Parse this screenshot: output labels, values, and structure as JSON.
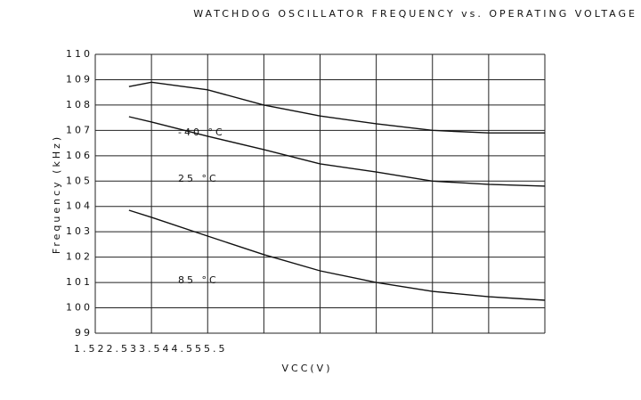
{
  "chart_data": {
    "type": "line",
    "title": "WATCHDOG OSCILLATOR FREQUENCY vs. OPERATING VOLTAGE",
    "xlabel": "VCC(V)",
    "ylabel": "Frequency (kHz)",
    "x": [
      1.8,
      2,
      2.5,
      3,
      3.5,
      4,
      4.5,
      5,
      5.5
    ],
    "series": [
      {
        "name": "-40 °C",
        "color": "#111111",
        "values": [
          108.73,
          108.9,
          108.6,
          108.0,
          107.57,
          107.26,
          107.0,
          106.9,
          106.9
        ]
      },
      {
        "name": "25 °C",
        "color": "#111111",
        "values": [
          107.54,
          107.33,
          106.77,
          106.24,
          105.68,
          105.36,
          105.0,
          104.87,
          104.8
        ]
      },
      {
        "name": "85 °C",
        "color": "#111111",
        "values": [
          103.85,
          103.57,
          102.83,
          102.1,
          101.46,
          101.0,
          100.65,
          100.44,
          100.3
        ]
      }
    ],
    "xlim": [
      1.5,
      5.5
    ],
    "xticks": [
      1.5,
      2,
      2.5,
      3,
      3.5,
      4,
      4.5,
      5,
      5.5
    ],
    "ylim": [
      99,
      110
    ],
    "yticks": [
      99,
      100,
      101,
      102,
      103,
      104,
      105,
      106,
      107,
      108,
      109,
      110
    ],
    "grid": true
  }
}
